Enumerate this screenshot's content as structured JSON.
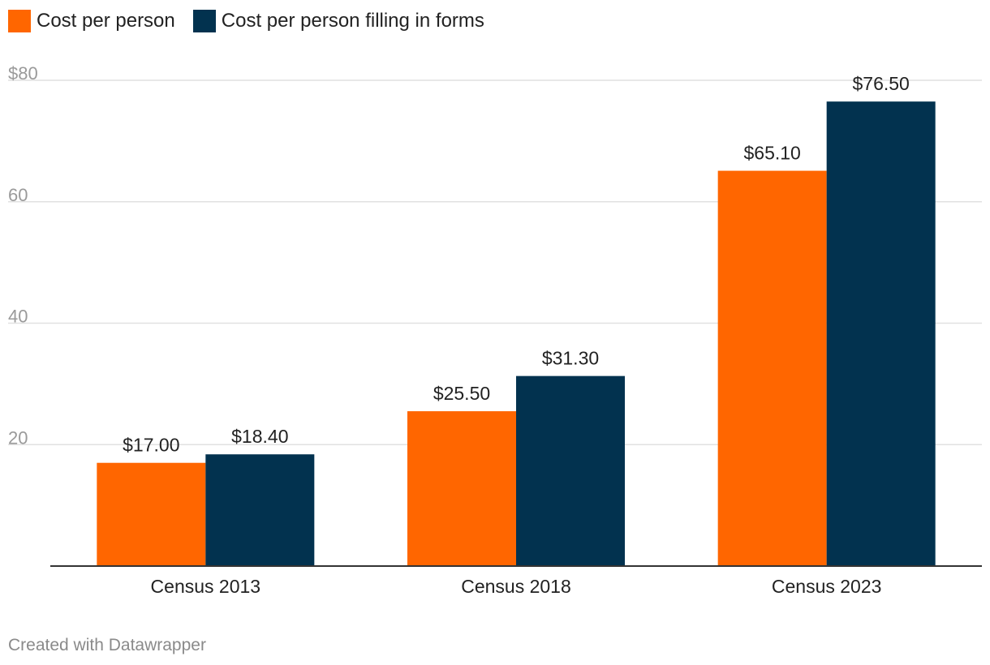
{
  "chart_data": {
    "type": "bar",
    "categories": [
      "Census 2013",
      "Census 2018",
      "Census 2023"
    ],
    "series": [
      {
        "name": "Cost per person",
        "color": "#ff6600",
        "values": [
          17.0,
          25.5,
          65.1
        ],
        "labels": [
          "$17.00",
          "$25.50",
          "$65.10"
        ]
      },
      {
        "name": "Cost per person filling in forms",
        "color": "#02324f",
        "values": [
          18.4,
          31.3,
          76.5
        ],
        "labels": [
          "$18.40",
          "$31.30",
          "$76.50"
        ]
      }
    ],
    "yticks": [
      20,
      40,
      60,
      80
    ],
    "ytick_labels": [
      "20",
      "40",
      "60",
      "$80"
    ],
    "ylim": [
      0,
      80
    ],
    "grid": true,
    "legend": "top-left"
  },
  "footer": {
    "credit": "Created with Datawrapper"
  }
}
